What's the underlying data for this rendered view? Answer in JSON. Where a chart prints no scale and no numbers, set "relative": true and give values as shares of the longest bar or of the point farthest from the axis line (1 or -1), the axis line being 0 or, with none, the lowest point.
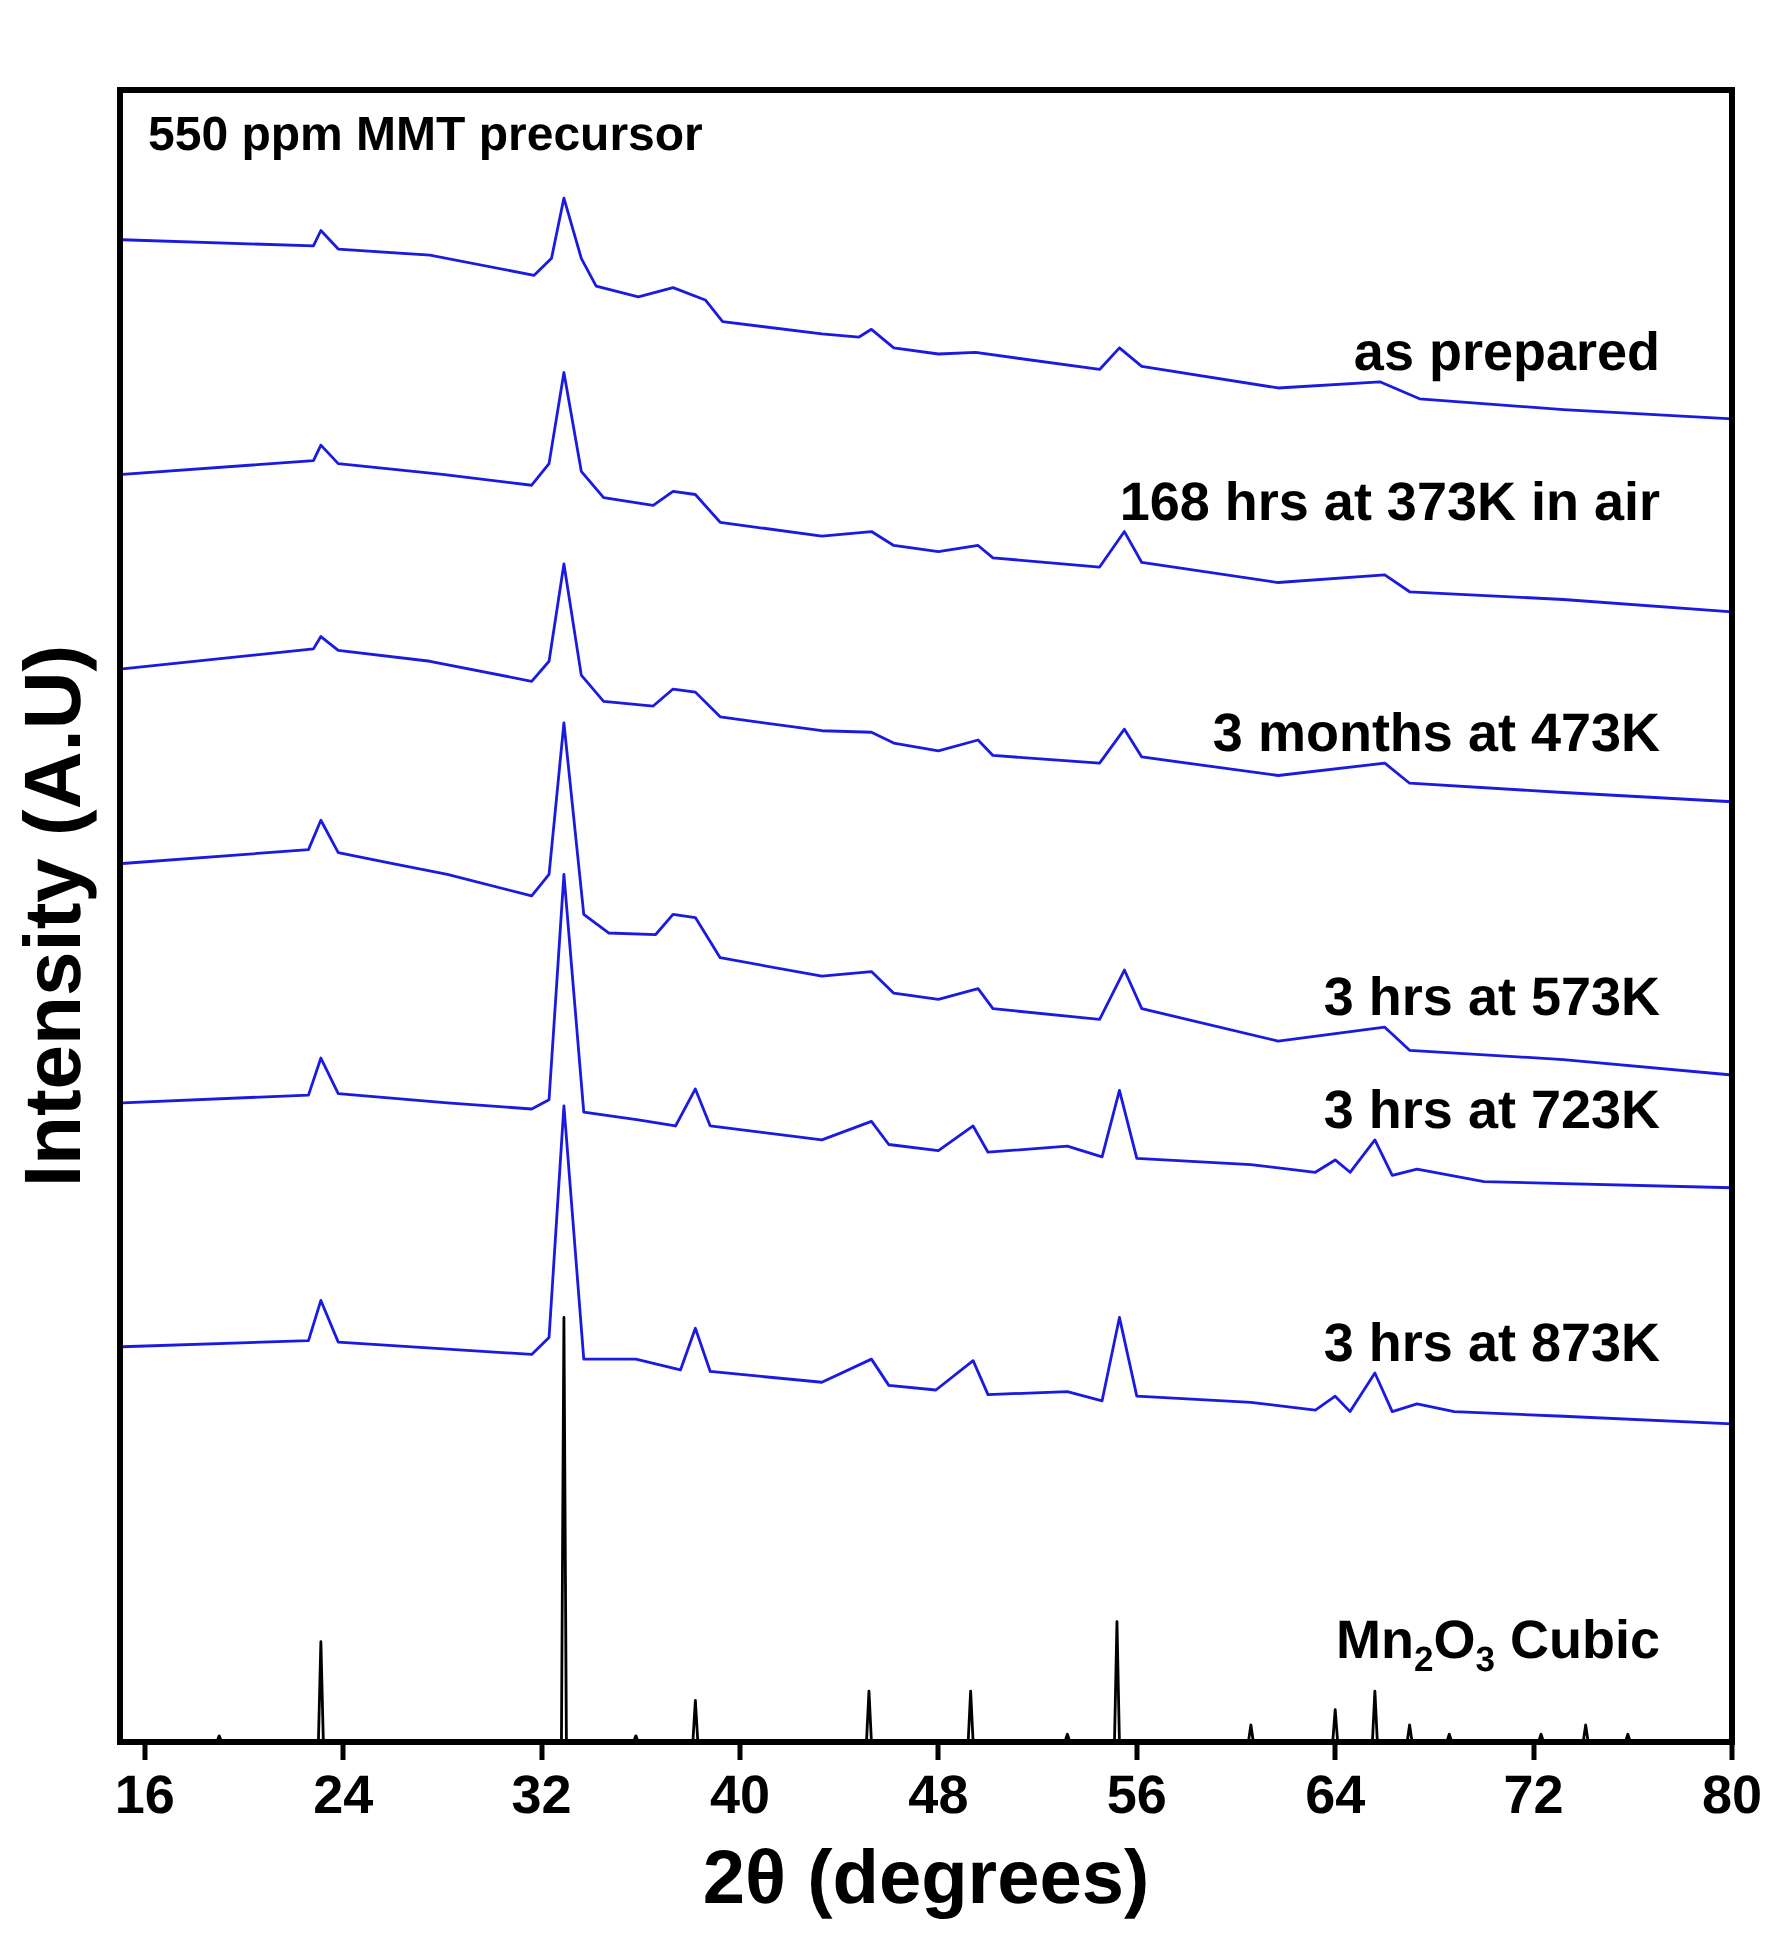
{
  "chart_data": {
    "type": "line",
    "title": "550 ppm MMT precursor",
    "xlabel": "2θ (degrees)",
    "ylabel": "Intensity (A.U)",
    "relative": true,
    "xlim": [
      15,
      80
    ],
    "xticks": [
      16,
      24,
      32,
      40,
      48,
      56,
      64,
      72,
      80
    ],
    "grid": false,
    "legend": false,
    "marker": "none",
    "line_style": "solid",
    "series": [
      {
        "name": "as prepared",
        "color": "#1a1ae0",
        "x": [
          15.1,
          22.8,
          23.1,
          23.8,
          27.5,
          31.7,
          32.4,
          32.9,
          33.6,
          34.2,
          35.9,
          37.3,
          38.6,
          39.3,
          43.3,
          44.8,
          45.3,
          46.2,
          48,
          49.5,
          54.5,
          55.3,
          56.2,
          61.7,
          65.8,
          67.4,
          73.2,
          80
        ],
        "values": [
          0.973,
          0.969,
          0.979,
          0.967,
          0.963,
          0.95,
          0.961,
          1.0,
          0.961,
          0.943,
          0.936,
          0.942,
          0.934,
          0.92,
          0.912,
          0.91,
          0.915,
          0.903,
          0.899,
          0.9,
          0.889,
          0.903,
          0.891,
          0.877,
          0.881,
          0.87,
          0.863,
          0.857
        ]
      },
      {
        "name": "168 hrs at 373K in air",
        "color": "#1a1ae0",
        "x": [
          15.1,
          22.8,
          23.1,
          23.8,
          28,
          31.6,
          32.3,
          32.9,
          33.6,
          34.5,
          36.5,
          37.3,
          38.2,
          39.2,
          43.3,
          45.3,
          46.2,
          48,
          49.6,
          50.2,
          54.5,
          55.5,
          56.2,
          61.7,
          66,
          67,
          73.2,
          80
        ],
        "values": [
          0.821,
          0.83,
          0.84,
          0.828,
          0.821,
          0.814,
          0.828,
          0.887,
          0.823,
          0.806,
          0.801,
          0.81,
          0.808,
          0.79,
          0.781,
          0.784,
          0.775,
          0.771,
          0.775,
          0.767,
          0.761,
          0.784,
          0.764,
          0.751,
          0.756,
          0.745,
          0.74,
          0.732
        ]
      },
      {
        "name": "3 months at 473K",
        "color": "#1a1ae0",
        "x": [
          15.1,
          22.8,
          23.1,
          23.8,
          27.5,
          31.6,
          32.3,
          32.9,
          33.6,
          34.5,
          36.5,
          37.3,
          38.2,
          39.2,
          43.3,
          45.3,
          46.2,
          48,
          49.6,
          50.2,
          54.5,
          55.5,
          56.2,
          61.7,
          66,
          67,
          73.2,
          80
        ],
        "values": [
          0.695,
          0.708,
          0.716,
          0.707,
          0.7,
          0.687,
          0.7,
          0.763,
          0.691,
          0.674,
          0.671,
          0.682,
          0.68,
          0.664,
          0.655,
          0.654,
          0.647,
          0.642,
          0.649,
          0.639,
          0.634,
          0.656,
          0.638,
          0.626,
          0.634,
          0.621,
          0.615,
          0.609
        ]
      },
      {
        "name": "3 hrs at 573K",
        "color": "#1a1ae0",
        "x": [
          15.1,
          22.6,
          23.1,
          23.8,
          26,
          28.2,
          31.6,
          32.3,
          32.9,
          33.7,
          34.7,
          36.6,
          37.3,
          38.2,
          39.2,
          43.3,
          45.3,
          46.2,
          48,
          49.6,
          50.2,
          54.5,
          55.5,
          56.2,
          61.7,
          66,
          67,
          73.2,
          80
        ],
        "values": [
          0.569,
          0.578,
          0.597,
          0.576,
          0.569,
          0.562,
          0.548,
          0.562,
          0.66,
          0.536,
          0.524,
          0.523,
          0.536,
          0.534,
          0.508,
          0.496,
          0.499,
          0.485,
          0.481,
          0.488,
          0.475,
          0.468,
          0.5,
          0.475,
          0.454,
          0.463,
          0.448,
          0.442,
          0.432
        ]
      },
      {
        "name": "3 hrs at 723K",
        "color": "#1a1ae0",
        "x": [
          15.1,
          22.6,
          23.1,
          23.8,
          28.2,
          31.6,
          32.3,
          32.9,
          33.7,
          35.9,
          37.4,
          38.2,
          38.8,
          43.3,
          45.3,
          46,
          48,
          49.4,
          50,
          53.2,
          54.6,
          55.3,
          56,
          60.6,
          63.2,
          64,
          64.6,
          65.6,
          66.3,
          67.3,
          70,
          80
        ],
        "values": [
          0.414,
          0.419,
          0.443,
          0.42,
          0.414,
          0.41,
          0.416,
          0.562,
          0.408,
          0.403,
          0.399,
          0.423,
          0.399,
          0.39,
          0.402,
          0.387,
          0.383,
          0.399,
          0.382,
          0.386,
          0.379,
          0.422,
          0.378,
          0.374,
          0.369,
          0.377,
          0.369,
          0.39,
          0.367,
          0.371,
          0.363,
          0.359
        ]
      },
      {
        "name": "3 hrs at 873K",
        "color": "#1a1ae0",
        "x": [
          15.1,
          22.6,
          23.1,
          23.8,
          31.6,
          32.3,
          32.9,
          33.7,
          35.8,
          37.6,
          38.2,
          38.8,
          43.3,
          45.3,
          46,
          47.9,
          49.4,
          50,
          53.2,
          54.6,
          55.3,
          56,
          60.6,
          63.2,
          64,
          64.6,
          65.6,
          66.3,
          67.3,
          68.8,
          73.2,
          80
        ],
        "values": [
          0.256,
          0.26,
          0.286,
          0.259,
          0.251,
          0.262,
          0.412,
          0.248,
          0.248,
          0.241,
          0.268,
          0.24,
          0.233,
          0.248,
          0.231,
          0.228,
          0.247,
          0.225,
          0.227,
          0.221,
          0.275,
          0.224,
          0.22,
          0.215,
          0.224,
          0.214,
          0.239,
          0.214,
          0.219,
          0.214,
          0.211,
          0.206
        ]
      },
      {
        "name": "Mn$_{2}$O$_{3}$ Cubic",
        "color": "#000000",
        "x": [
          15.1,
          18.9,
          19,
          19.1,
          23,
          23.1,
          23.2,
          32.8,
          32.9,
          33,
          35.7,
          35.8,
          35.9,
          38.1,
          38.2,
          38.3,
          42.9,
          43,
          43.1,
          45.1,
          45.2,
          45.3,
          49.2,
          49.3,
          49.4,
          53.1,
          53.2,
          53.3,
          55.1,
          55.2,
          55.3,
          60.5,
          60.6,
          60.7,
          63.9,
          64,
          64.1,
          65.5,
          65.6,
          65.7,
          66.9,
          67,
          67.1,
          68.5,
          68.6,
          68.7,
          72.2,
          72.3,
          72.4,
          74,
          74.1,
          74.2,
          75.7,
          75.8,
          75.9,
          80
        ],
        "values": [
          0,
          0,
          0.004,
          0,
          0,
          0.065,
          0,
          0,
          0.275,
          0,
          0,
          0.004,
          0,
          0,
          0.027,
          0,
          0,
          0.001,
          0,
          0,
          0.033,
          0,
          0,
          0.033,
          0,
          0,
          0.005,
          0,
          0,
          0.078,
          0,
          0,
          0.011,
          0,
          0,
          0.021,
          0,
          0,
          0.033,
          0,
          0,
          0.011,
          0,
          0,
          0.005,
          0,
          0,
          0.005,
          0,
          0,
          0.011,
          0,
          0,
          0.005,
          0,
          0
        ]
      }
    ]
  }
}
